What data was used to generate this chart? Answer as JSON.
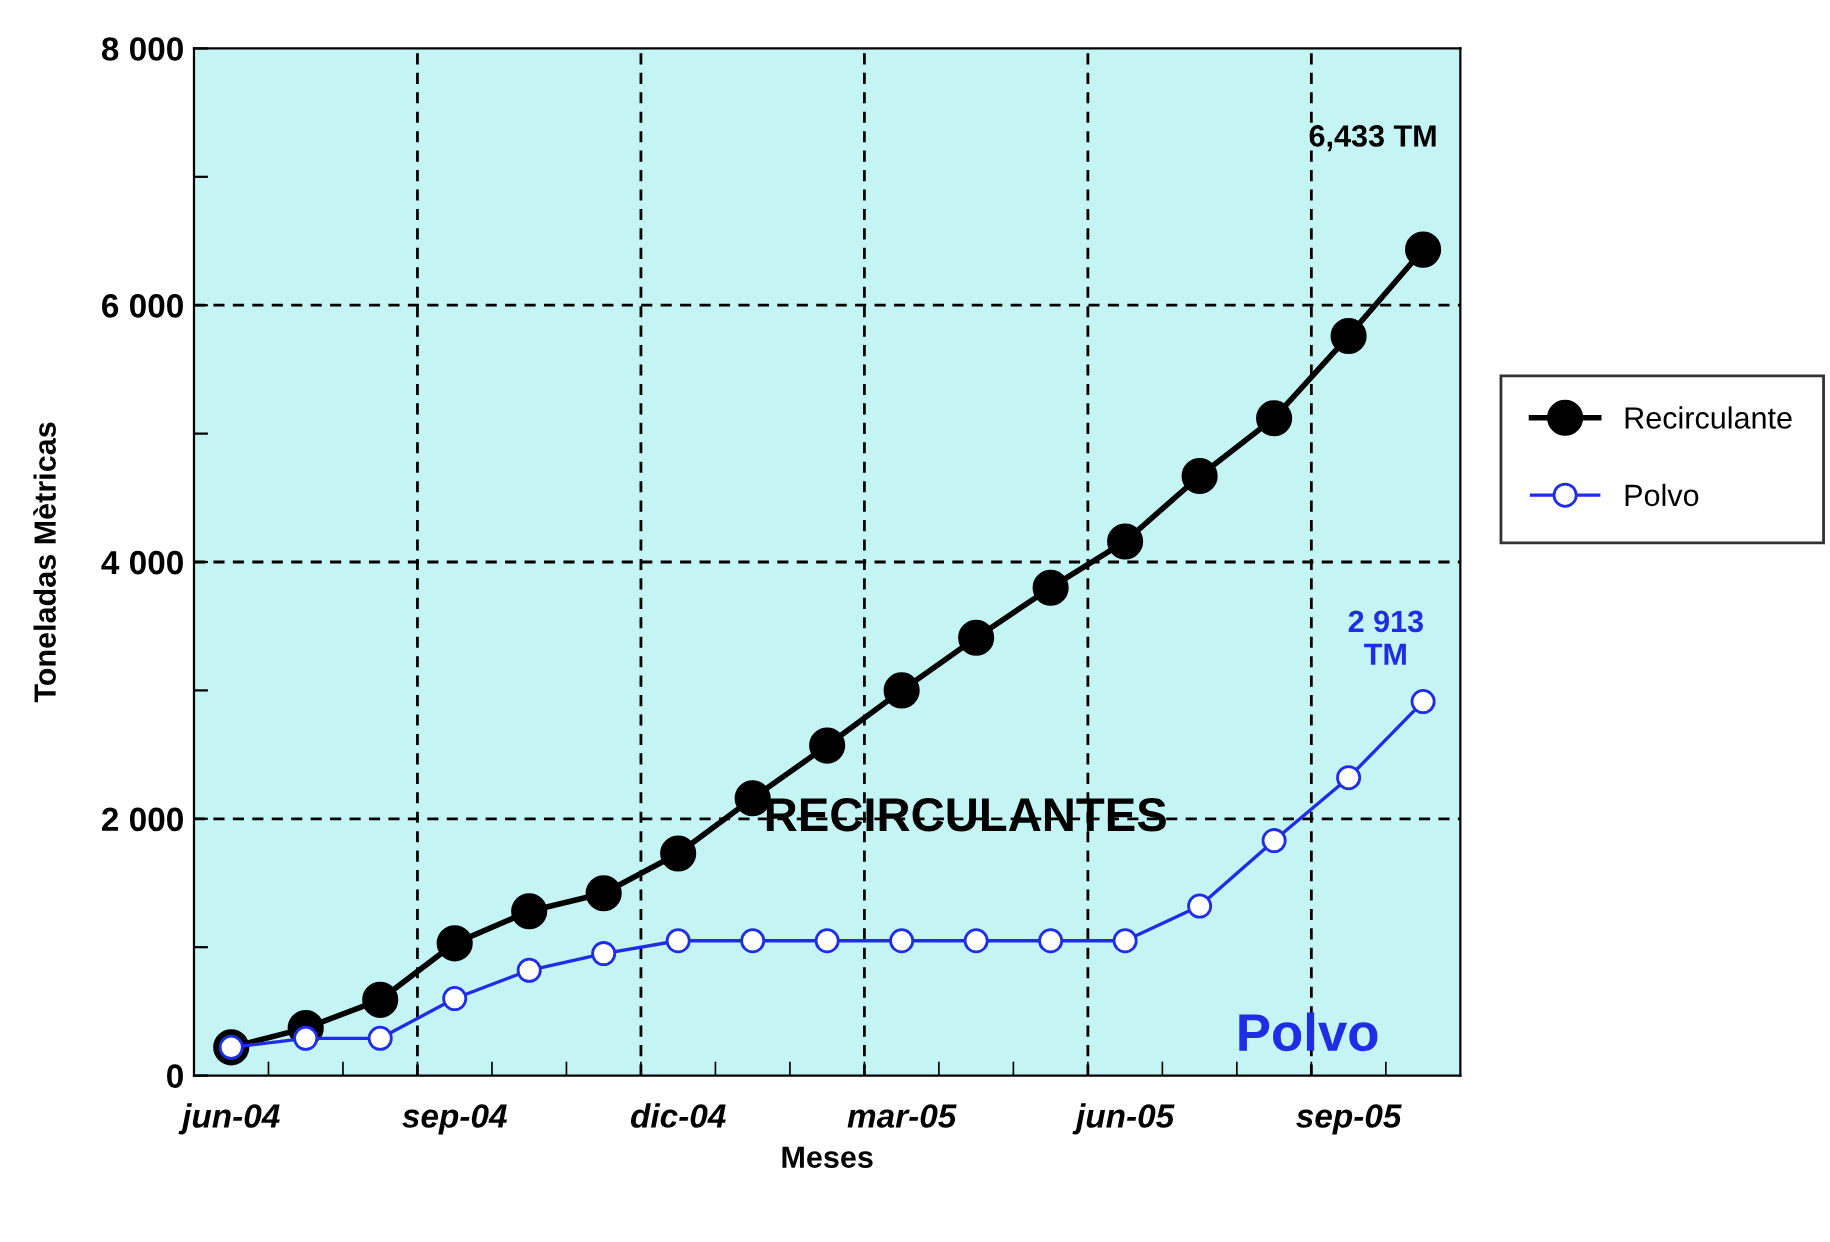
{
  "chart_data": {
    "type": "line",
    "xlabel": "Meses",
    "ylabel": "Toneladas Mètricas",
    "categories": [
      "jun-04",
      null,
      null,
      "sep-04",
      null,
      null,
      "dic-04",
      null,
      null,
      "mar-05",
      null,
      null,
      "jun-05",
      null,
      null,
      "sep-05",
      null
    ],
    "series": [
      {
        "name": "Recirculante",
        "color": "#000000",
        "values": [
          220,
          370,
          590,
          1030,
          1280,
          1420,
          1730,
          2160,
          2570,
          3000,
          3410,
          3800,
          4160,
          4670,
          5120,
          5760,
          6433
        ]
      },
      {
        "name": "Polvo",
        "color": "#1f2ee6",
        "values": [
          220,
          290,
          290,
          600,
          820,
          950,
          1050,
          1050,
          1050,
          1050,
          1050,
          1050,
          1050,
          1320,
          1830,
          2320,
          2913
        ]
      }
    ],
    "ylim": [
      0,
      8000
    ],
    "yticks": [
      {
        "value": 0,
        "label": "0"
      },
      {
        "value": 1000,
        "label": null
      },
      {
        "value": 2000,
        "label": "2 000"
      },
      {
        "value": 3000,
        "label": null
      },
      {
        "value": 4000,
        "label": "4 000"
      },
      {
        "value": 5000,
        "label": null
      },
      {
        "value": 6000,
        "label": "6 000"
      },
      {
        "value": 7000,
        "label": null
      },
      {
        "value": 8000,
        "label": "8 000"
      }
    ],
    "annotations": [
      "6,433 TM",
      "2 913\nTM",
      "RECIRCULANTES",
      "Polvo"
    ],
    "grid": true,
    "legend": "right",
    "marker": "circle",
    "line_style": "solid"
  }
}
